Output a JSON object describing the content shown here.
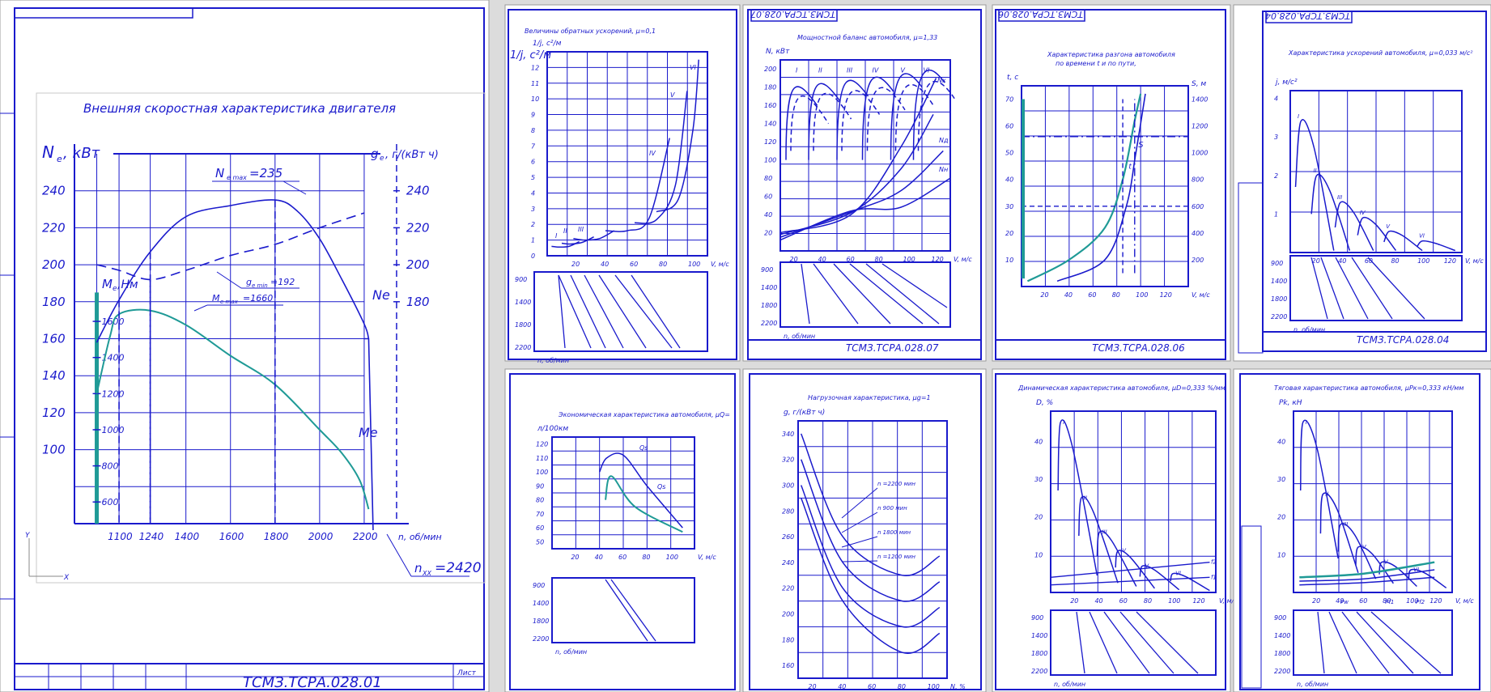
{
  "colors": {
    "ink": "#1a1acc",
    "teal": "#1f9a96",
    "sheet": "#ffffff",
    "desk": "#dcdcdc"
  },
  "sheets": [
    {
      "id": "s1",
      "chart_data": {
        "type": "line",
        "title": "Внешняя скоростная характеристика двигателя",
        "stamp": "ТСМЗ.ТСРА.028.01",
        "stamp_list_label": "Лист",
        "y_left_label": "N",
        "y_left_sub": "е",
        "y_left_unit": ", кВт",
        "y_right_label": "g",
        "y_right_sub": "е",
        "y_right_unit": ", г/(кВт ч)",
        "torque_label": "M",
        "torque_sub": "е",
        "torque_unit": ",Нм",
        "x_label": "n, об/мин",
        "xlim": [
          900,
          2400
        ],
        "ylim": [
          60,
          260
        ],
        "x_ticks": [
          "1100",
          "1240",
          "1400",
          "1600",
          "1800",
          "2000",
          "2200"
        ],
        "x_tick_values": [
          1100,
          1240,
          1400,
          1600,
          1800,
          2000,
          2200
        ],
        "y_ticks": [
          "100",
          "120",
          "140",
          "160",
          "180",
          "200",
          "220",
          "240"
        ],
        "y_tick_values": [
          100,
          120,
          140,
          160,
          180,
          200,
          220,
          240
        ],
        "right_ticks": [
          "180",
          "200",
          "220",
          "240"
        ],
        "right_tick_values": [
          180,
          200,
          220,
          240
        ],
        "torque_ticks": [
          "600",
          "800",
          "1000",
          "1200",
          "1400",
          "1600"
        ],
        "torque_tick_values": [
          600,
          800,
          1000,
          1200,
          1400,
          1600
        ],
        "torque_axis_range": [
          480,
          1760
        ],
        "annotations": {
          "n_max": "N",
          "n_max_sub": "е max",
          "n_max_value": "=235",
          "g_min": "g",
          "g_min_sub": "е min",
          "g_min_value": "=192",
          "m_max": "M",
          "m_max_sub": "е max",
          "m_max_value": "=1660",
          "ne": "Ne",
          "me": "Me",
          "n_xx": "n",
          "n_xx_sub": "XX",
          "n_xx_value": "=2420"
        },
        "series": [
          {
            "name": "Ne",
            "color": "#1a1acc",
            "x": [
              1000,
              1100,
              1240,
              1400,
              1600,
              1800,
              1900,
              2000,
              2100,
              2200,
              2220
            ],
            "y": [
              158,
              181,
              207,
              226,
              232,
              235,
              229,
              214,
              192,
              168,
              160
            ]
          },
          {
            "name": "ge",
            "color": "#1a1acc",
            "dashed": true,
            "x": [
              1000,
              1100,
              1240,
              1400,
              1600,
              1800,
              2000,
              2200
            ],
            "y": [
              200,
              197,
              192,
              197,
              205,
              211,
              220,
              228
            ]
          },
          {
            "name": "Me",
            "color": "#1f9a96",
            "torque": true,
            "x": [
              1000,
              1060,
              1100,
              1240,
              1400,
              1600,
              1800,
              2000,
              2100,
              2180,
              2220
            ],
            "y": [
              1200,
              1520,
              1640,
              1660,
              1580,
              1410,
              1250,
              1000,
              870,
              720,
              560
            ]
          }
        ],
        "markers_x": [
          1100,
          1240,
          1800,
          2200
        ]
      }
    },
    {
      "id": "s2",
      "chart_data": {
        "type": "line",
        "title": "Величины обратных ускорений,",
        "title_formula": "μ=0,1",
        "y_label": "1/j, с²/м",
        "x_label": "V, м/с",
        "xlim": [
          0,
          110
        ],
        "ylim": [
          0,
          13
        ],
        "x_ticks": [
          "20",
          "40",
          "60",
          "80",
          "100"
        ],
        "x_tick_values": [
          20,
          40,
          60,
          80,
          100
        ],
        "y_ticks": [
          "0",
          "1",
          "2",
          "3",
          "4",
          "5",
          "6",
          "7",
          "8",
          "9",
          "10",
          "11",
          "12"
        ],
        "y_tick_values": [
          0,
          1,
          2,
          3,
          4,
          5,
          6,
          7,
          8,
          9,
          10,
          11,
          12
        ],
        "gear_labels": [
          "I",
          "II",
          "III",
          "IV",
          "V",
          "VI"
        ],
        "rpm_label": "n, об/мин",
        "rpm_ticks": [
          "900",
          "1400",
          "1800",
          "2200"
        ],
        "series": [
          {
            "x": [
              3,
              8,
              15,
              22
            ],
            "y": [
              0.6,
              0.55,
              0.6,
              0.9
            ]
          },
          {
            "x": [
              10,
              16,
              24,
              32
            ],
            "y": [
              0.8,
              0.75,
              0.85,
              1.2
            ]
          },
          {
            "x": [
              18,
              26,
              36,
              46
            ],
            "y": [
              1.1,
              1.0,
              1.1,
              1.6
            ]
          },
          {
            "x": [
              40,
              55,
              70,
              84
            ],
            "y": [
              1.6,
              1.6,
              2.4,
              7.5
            ]
          },
          {
            "x": [
              60,
              75,
              88,
              96
            ],
            "y": [
              2.1,
              2.3,
              4.5,
              10.5
            ]
          },
          {
            "x": [
              75,
              90,
              100,
              104
            ],
            "y": [
              2.8,
              3.6,
              8.0,
              12.5
            ]
          }
        ]
      }
    },
    {
      "id": "s3",
      "chart_data": {
        "type": "line",
        "title": "Мощностной баланс автомобиля,",
        "title_formula": "μ=1,33",
        "top_stamp": "ТСМЗ.ТСРА.028.07",
        "stamp": "ТСМЗ.ТСРА.028.07",
        "y_label": "N, кВт",
        "x_label": "V, м/с",
        "xlim": [
          10,
          130
        ],
        "ylim": [
          0,
          210
        ],
        "x_ticks": [
          "20",
          "40",
          "60",
          "80",
          "100",
          "120"
        ],
        "x_tick_values": [
          20,
          40,
          60,
          80,
          100,
          120
        ],
        "y_ticks": [
          "20",
          "40",
          "60",
          "80",
          "100",
          "120",
          "140",
          "160",
          "180",
          "200"
        ],
        "y_tick_values": [
          20,
          40,
          60,
          80,
          100,
          120,
          140,
          160,
          180,
          200
        ],
        "gear_labels": [
          "I",
          "II",
          "III",
          "IV",
          "V",
          "VI"
        ],
        "rpm_label": "n, об/мин",
        "rpm_ticks": [
          "900",
          "1400",
          "1800",
          "2200"
        ],
        "curve_labels": [
          "Nк",
          "Nд",
          "Nн"
        ]
      }
    },
    {
      "id": "s4",
      "chart_data": {
        "type": "line",
        "title": "Характеристика разгона автомобиля",
        "subtitle": "по времени t и по пути,",
        "top_stamp": "ТСМЗ.ТСРА.028.06",
        "stamp": "ТСМЗ.ТСРА.028.06",
        "y_left_label": "t, с",
        "y_right_label": "S, м",
        "x_label": "V, м/с",
        "xlim": [
          0,
          140
        ],
        "ylim": [
          0,
          75
        ],
        "x_ticks": [
          "20",
          "40",
          "60",
          "80",
          "100",
          "120"
        ],
        "x_tick_values": [
          20,
          40,
          60,
          80,
          100,
          120
        ],
        "y_ticks": [
          "10",
          "20",
          "30",
          "40",
          "50",
          "60",
          "70"
        ],
        "y_tick_values": [
          10,
          20,
          30,
          40,
          50,
          60,
          70
        ],
        "right_ticks": [
          "200",
          "400",
          "600",
          "800",
          "1000",
          "1200",
          "1400"
        ],
        "curve_labels": [
          "t",
          "S"
        ]
      }
    },
    {
      "id": "s5",
      "chart_data": {
        "type": "line",
        "title": "Характеристика ускорений автомобиля,",
        "title_formula": "μ=0,033 м/с²",
        "top_stamp": "ТСМЗ.ТСРА.028.04",
        "stamp": "ТСМЗ.ТСРА.028.04",
        "y_label": "j, м/с²",
        "x_label": "V, м/с",
        "xlim": [
          0,
          130
        ],
        "ylim": [
          0,
          4.2
        ],
        "x_ticks": [
          "20",
          "40",
          "60",
          "80",
          "100",
          "120"
        ],
        "x_tick_values": [
          20,
          40,
          60,
          80,
          100,
          120
        ],
        "y_ticks": [
          "1",
          "2",
          "3",
          "4"
        ],
        "y_tick_values": [
          1,
          2,
          3,
          4
        ],
        "gear_labels": [
          "I",
          "II",
          "III",
          "IV",
          "V",
          "VI"
        ],
        "rpm_label": "n, об/мин",
        "rpm_ticks": [
          "900",
          "1400",
          "1800",
          "2200"
        ]
      }
    },
    {
      "id": "s6",
      "chart_data": {
        "type": "line",
        "title": "Экономическая характеристика автомобиля,",
        "title_formula": "μQ=",
        "y_label": "л/100км",
        "x_label": "V, м/с",
        "xlim": [
          0,
          120
        ],
        "ylim": [
          45,
          125
        ],
        "x_ticks": [
          "20",
          "40",
          "60",
          "80",
          "100"
        ],
        "x_tick_values": [
          20,
          40,
          60,
          80,
          100
        ],
        "y_ticks": [
          "50",
          "60",
          "70",
          "80",
          "90",
          "100",
          "110",
          "120"
        ],
        "y_tick_values": [
          50,
          60,
          70,
          80,
          90,
          100,
          110,
          120
        ],
        "curve_labels": [
          "Qs",
          "Qs"
        ],
        "rpm_label": "n, об/мин",
        "rpm_ticks": [
          "900",
          "1400",
          "1800",
          "2200"
        ]
      }
    },
    {
      "id": "s7",
      "chart_data": {
        "type": "line",
        "title": "Нагрузочная характеристика,",
        "title_formula": "μg=1",
        "y_label": "g, г/(кВт ч)",
        "x_label": "N, %",
        "xlim": [
          10,
          110
        ],
        "ylim": [
          150,
          350
        ],
        "x_ticks": [
          "20",
          "40",
          "60",
          "80",
          "100"
        ],
        "x_tick_values": [
          20,
          40,
          60,
          80,
          100
        ],
        "y_ticks": [
          "160",
          "180",
          "200",
          "220",
          "240",
          "260",
          "280",
          "300",
          "320",
          "340"
        ],
        "y_tick_values": [
          160,
          180,
          200,
          220,
          240,
          260,
          280,
          300,
          320,
          340
        ],
        "curve_labels": [
          "n =2200 мин",
          "n 900 мин",
          "n 1800 мин",
          "n =1200 мин"
        ]
      }
    },
    {
      "id": "s8",
      "chart_data": {
        "type": "line",
        "title": "Динамическая характеристика автомобиля,",
        "title_formula": "μD=0,333 %/мм",
        "y_label": "D, %",
        "x_label": "V, м/с",
        "xlim": [
          0,
          135
        ],
        "ylim": [
          0,
          48
        ],
        "x_ticks": [
          "20",
          "40",
          "60",
          "80",
          "100",
          "120"
        ],
        "x_tick_values": [
          20,
          40,
          60,
          80,
          100,
          120
        ],
        "y_ticks": [
          "10",
          "20",
          "30",
          "40"
        ],
        "y_tick_values": [
          10,
          20,
          30,
          40
        ],
        "gear_labels": [
          "I",
          "II",
          "III",
          "IV",
          "V",
          "VI"
        ],
        "rpm_label": "n, об/мин",
        "rpm_ticks": [
          "900",
          "1400",
          "1800",
          "2200"
        ],
        "curve_labels": [
          "f2",
          "f1"
        ]
      }
    },
    {
      "id": "s9",
      "chart_data": {
        "type": "line",
        "title": "Тяговая характеристика автомобиля,",
        "title_formula": "μPк=0,333 кН/мм",
        "y_label": "Pk, кН",
        "x_label": "V, м/с",
        "xlim": [
          0,
          135
        ],
        "ylim": [
          0,
          48
        ],
        "x_ticks": [
          "20",
          "40",
          "60",
          "80",
          "100",
          "120"
        ],
        "x_tick_values": [
          20,
          40,
          60,
          80,
          100,
          120
        ],
        "y_ticks": [
          "10",
          "20",
          "30",
          "40"
        ],
        "y_tick_values": [
          10,
          20,
          30,
          40
        ],
        "gear_labels": [
          "I",
          "II",
          "III",
          "IV",
          "V",
          "VI"
        ],
        "rpm_label": "n, об/мин",
        "rpm_ticks": [
          "900",
          "1400",
          "1800",
          "2200"
        ],
        "curve_labels": [
          "Pw",
          "Pf1",
          "Pf2"
        ]
      }
    }
  ]
}
